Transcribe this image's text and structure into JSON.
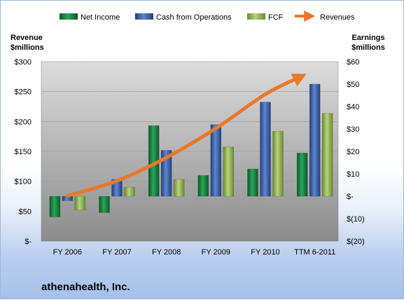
{
  "chart_data": {
    "type": "bar",
    "title": "athenahealth, Inc.",
    "categories": [
      "FY 2006",
      "FY 2007",
      "FY 2008",
      "FY 2009",
      "FY 2010",
      "TTM 6-2011"
    ],
    "series": [
      {
        "name": "Net Income",
        "axis": "right",
        "values": [
          -9.2,
          -7.3,
          31.5,
          9.3,
          12.2,
          19.3
        ]
      },
      {
        "name": "Cash from Operations",
        "axis": "right",
        "values": [
          -2.0,
          7.5,
          20.5,
          32.0,
          42.0,
          50.0
        ]
      },
      {
        "name": "FCF",
        "axis": "right",
        "values": [
          -6.2,
          4.0,
          7.5,
          22.0,
          29.0,
          37.0
        ]
      },
      {
        "name": "Revenues",
        "type": "line",
        "axis": "left",
        "values": [
          75.8,
          100.8,
          139.6,
          188.5,
          245.5,
          275.0
        ]
      }
    ],
    "left_axis": {
      "label_line1": "Revenue",
      "label_line2": "$millions",
      "ylim": [
        0,
        300
      ],
      "ticks": [
        "$-",
        "$50",
        "$100",
        "$150",
        "$200",
        "$250",
        "$300"
      ]
    },
    "right_axis": {
      "label_line1": "Earnings",
      "label_line2": "$millions",
      "ylim": [
        -20,
        60
      ],
      "ticks": [
        "$(20)",
        "$(10)",
        "$-",
        "$10",
        "$20",
        "$30",
        "$40",
        "$50",
        "$60"
      ]
    },
    "legend_position": "top",
    "grid": true,
    "colors": {
      "net_income": "#117a3a",
      "cash_from_operations": "#3a62ad",
      "fcf": "#8fad4e",
      "revenues": "#e9782a"
    }
  }
}
